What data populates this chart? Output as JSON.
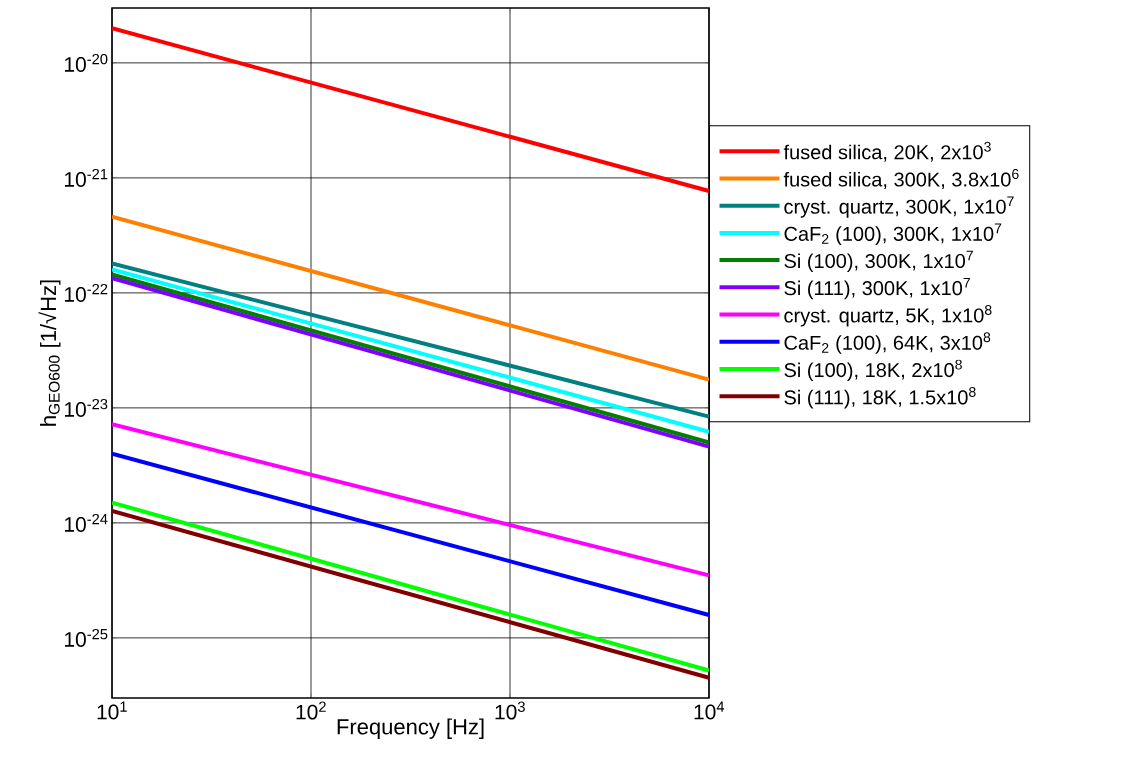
{
  "chart_data": {
    "type": "line",
    "xlabel": "Frequency [Hz]",
    "ylabel": "h$_{GEO600}$ [1/√Hz]",
    "log": "xy",
    "grid": true,
    "legend": "right",
    "marker": "none",
    "line_style": "solid",
    "xlim": [
      10,
      10000
    ],
    "ylim": [
      3e-26,
      3e-20
    ],
    "xticks": [
      {
        "value": 10,
        "label": "10$^{1}$"
      },
      {
        "value": 100,
        "label": "10$^{2}$"
      },
      {
        "value": 1000,
        "label": "10$^{3}$"
      },
      {
        "value": 10000,
        "label": "10$^{4}$"
      }
    ],
    "yticks": [
      {
        "value": 1e-25,
        "label": "10$^{-25}$"
      },
      {
        "value": 1e-24,
        "label": "10$^{-24}$"
      },
      {
        "value": 1e-23,
        "label": "10$^{-23}$"
      },
      {
        "value": 1e-22,
        "label": "10$^{-22}$"
      },
      {
        "value": 1e-21,
        "label": "10$^{-21}$"
      },
      {
        "value": 1e-20,
        "label": "10$^{-20}$"
      }
    ],
    "x": [
      10,
      10000
    ],
    "series": [
      {
        "name": "fused silica,    20K,    2x10$^{3}$",
        "color": "#ff0000",
        "values": [
          2e-20,
          7.7e-22
        ]
      },
      {
        "name": "fused silica,  300K, 3.8x10$^{6}$",
        "color": "#ff8000",
        "values": [
          4.6e-22,
          1.76e-23
        ]
      },
      {
        "name": "cryst. quartz, 300K,   1x10$^{7}$",
        "color": "#008080",
        "values": [
          1.8e-22,
          8.4e-24
        ]
      },
      {
        "name": "CaF$_{2}$ (100),   300K,   1x10$^{7}$",
        "color": "#00ffff",
        "values": [
          1.6e-22,
          6.2e-24
        ]
      },
      {
        "name": "Si (100),         300K,   1x10$^{7}$",
        "color": "#008000",
        "values": [
          1.45e-22,
          5e-24
        ]
      },
      {
        "name": "Si (111),         300K,   1x10$^{7}$",
        "color": "#8000ff",
        "values": [
          1.34e-22,
          4.6e-24
        ]
      },
      {
        "name": "cryst. quartz,     5K,   1x10$^{8}$",
        "color": "#ff00ff",
        "values": [
          7.2e-24,
          3.5e-25
        ]
      },
      {
        "name": "CaF$_{2}$ (100),     64K,    3x10$^{8}$",
        "color": "#0000ff",
        "values": [
          4e-24,
          1.58e-25
        ]
      },
      {
        "name": "Si (100),          18K,    2x10$^{8}$",
        "color": "#00ff00",
        "values": [
          1.5e-24,
          5.2e-26
        ]
      },
      {
        "name": "Si (111),          18K, 1.5x10$^{8}$",
        "color": "#800000",
        "values": [
          1.27e-24,
          4.5e-26
        ]
      }
    ]
  }
}
